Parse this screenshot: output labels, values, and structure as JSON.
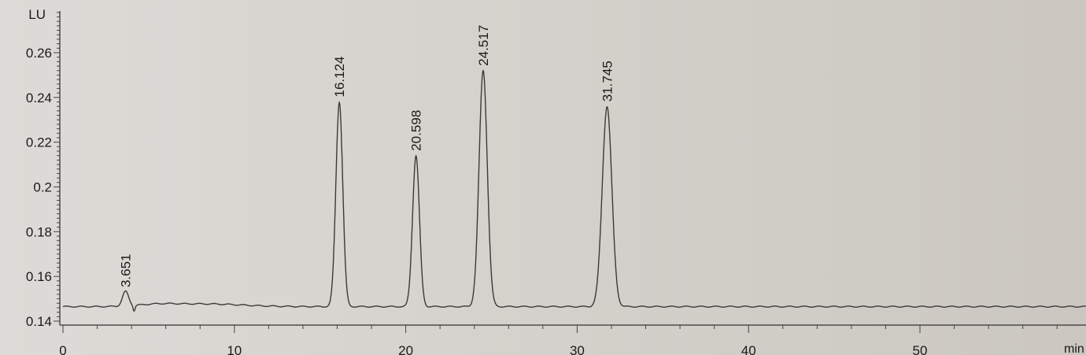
{
  "chart_data": {
    "type": "line",
    "title": "",
    "xlabel": "min",
    "ylabel": "LU",
    "xlim": [
      0,
      59.7
    ],
    "ylim": [
      0.14,
      0.2836
    ],
    "xticks": [
      0,
      10,
      20,
      30,
      40,
      50
    ],
    "yticks": [
      0.14,
      0.16,
      0.18,
      0.2,
      0.22,
      0.24,
      0.26
    ],
    "ytick_labels": [
      "0.14",
      "0.16",
      "0.18",
      "0.2",
      "0.22",
      "0.24",
      "0.26"
    ],
    "grid": false,
    "baseline": 0.1465,
    "peaks": [
      {
        "label": "3.651",
        "rt": 3.651,
        "height": 0.153
      },
      {
        "label": "16.124",
        "rt": 16.124,
        "height": 0.238
      },
      {
        "label": "20.598",
        "rt": 20.598,
        "height": 0.214
      },
      {
        "label": "24.517",
        "rt": 24.517,
        "height": 0.252
      },
      {
        "label": "31.745",
        "rt": 31.745,
        "height": 0.236
      }
    ],
    "line_color": "#3a3a3a"
  }
}
